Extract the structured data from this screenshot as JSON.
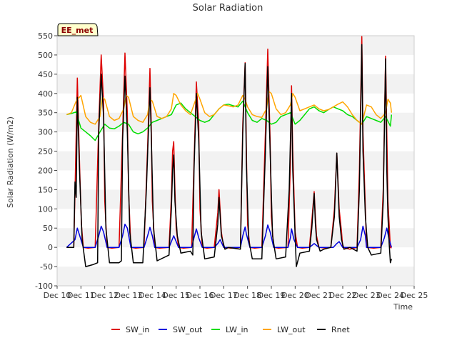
{
  "chart_data": {
    "type": "line",
    "title": "Solar Radiation",
    "xlabel": "Time",
    "ylabel": "Solar Radiation (W/m2)",
    "badge": "EE_met",
    "ylim": [
      -100,
      550
    ],
    "yticks": [
      -100,
      -50,
      0,
      50,
      100,
      150,
      200,
      250,
      300,
      350,
      400,
      450,
      500,
      550
    ],
    "xlim": [
      10,
      25
    ],
    "xticks": [
      10,
      11,
      12,
      13,
      14,
      15,
      16,
      17,
      18,
      19,
      20,
      21,
      22,
      23,
      24,
      25
    ],
    "xtick_labels": [
      "Dec 10",
      "Dec 11",
      "Dec 12",
      "Dec 13",
      "Dec 14",
      "Dec 15",
      "Dec 16",
      "Dec 17",
      "Dec 18",
      "Dec 19",
      "Dec 20",
      "Dec 21",
      "Dec 22",
      "Dec 23",
      "Dec 24",
      "Dec 25"
    ],
    "x_unit": "day of December (fractional)",
    "grid": "horizontal bands",
    "legend_position": "bottom",
    "series": [
      {
        "name": "SW_in",
        "color": "#dd0000",
        "x": [
          10.4,
          10.7,
          10.75,
          10.85,
          10.95,
          11.02,
          11.1,
          11.3,
          11.6,
          11.75,
          11.85,
          11.95,
          12.0,
          12.1,
          12.3,
          12.6,
          12.75,
          12.85,
          12.95,
          13.0,
          13.1,
          13.3,
          13.65,
          13.8,
          13.9,
          13.95,
          14.0,
          14.1,
          14.3,
          14.7,
          14.8,
          14.85,
          14.9,
          14.95,
          15.0,
          15.1,
          15.3,
          15.65,
          15.75,
          15.85,
          15.95,
          16.0,
          16.1,
          16.3,
          16.6,
          16.75,
          16.8,
          16.9,
          17.0,
          17.3,
          17.7,
          17.8,
          17.9,
          17.95,
          18.0,
          18.1,
          18.3,
          18.6,
          18.75,
          18.85,
          18.95,
          19.0,
          19.1,
          19.3,
          19.7,
          19.8,
          19.85,
          19.9,
          20.0,
          20.1,
          20.3,
          20.6,
          20.7,
          20.8,
          20.85,
          20.9,
          21.0,
          21.3,
          21.5,
          21.65,
          21.75,
          21.85,
          21.95,
          22.0,
          22.3,
          22.6,
          22.7,
          22.8,
          22.85,
          22.95,
          23.0,
          23.3,
          23.6,
          23.7,
          23.8,
          23.85,
          23.9,
          23.95,
          24.0,
          24.05
        ],
        "y": [
          0,
          0,
          140,
          440,
          200,
          60,
          0,
          -2,
          0,
          320,
          500,
          380,
          120,
          0,
          -2,
          0,
          300,
          505,
          350,
          150,
          0,
          -2,
          0,
          260,
          465,
          330,
          120,
          0,
          -2,
          0,
          130,
          250,
          275,
          150,
          50,
          0,
          -2,
          0,
          220,
          430,
          320,
          100,
          0,
          -2,
          0,
          90,
          150,
          40,
          0,
          -2,
          0,
          320,
          480,
          260,
          60,
          0,
          -2,
          0,
          300,
          515,
          280,
          80,
          0,
          -2,
          0,
          220,
          420,
          250,
          40,
          0,
          -2,
          0,
          70,
          145,
          80,
          30,
          0,
          -2,
          0,
          100,
          245,
          100,
          40,
          0,
          -5,
          0,
          200,
          548,
          300,
          100,
          0,
          -2,
          0,
          150,
          497,
          300,
          120,
          60,
          0,
          -2
        ]
      },
      {
        "name": "SW_out",
        "color": "#0000dd",
        "x": [
          10.4,
          10.75,
          10.85,
          10.95,
          11.1,
          11.6,
          11.75,
          11.85,
          11.95,
          12.1,
          12.6,
          12.75,
          12.85,
          12.95,
          13.1,
          13.65,
          13.8,
          13.9,
          14.0,
          14.1,
          14.7,
          14.8,
          14.9,
          15.0,
          15.1,
          15.65,
          15.75,
          15.85,
          15.95,
          16.1,
          16.6,
          16.75,
          16.85,
          17.0,
          17.7,
          17.8,
          17.9,
          17.95,
          18.1,
          18.6,
          18.75,
          18.85,
          18.95,
          19.1,
          19.7,
          19.8,
          19.85,
          19.95,
          20.1,
          20.6,
          20.7,
          20.8,
          20.9,
          21.0,
          21.6,
          21.75,
          21.85,
          22.0,
          22.6,
          22.75,
          22.85,
          22.95,
          23.0,
          23.6,
          23.75,
          23.85,
          23.95,
          24.05
        ],
        "y": [
          0,
          20,
          50,
          30,
          0,
          0,
          30,
          55,
          40,
          0,
          0,
          30,
          60,
          50,
          0,
          0,
          30,
          52,
          30,
          0,
          0,
          15,
          30,
          15,
          0,
          0,
          25,
          48,
          25,
          0,
          0,
          10,
          20,
          0,
          0,
          30,
          53,
          35,
          0,
          0,
          30,
          58,
          40,
          0,
          0,
          25,
          48,
          20,
          0,
          0,
          5,
          10,
          5,
          0,
          0,
          10,
          15,
          0,
          0,
          20,
          55,
          30,
          0,
          0,
          25,
          50,
          20,
          0
        ]
      },
      {
        "name": "LW_in",
        "color": "#00dd00",
        "x": [
          10.4,
          10.6,
          10.8,
          11.0,
          11.2,
          11.4,
          11.6,
          11.8,
          12.0,
          12.2,
          12.4,
          12.6,
          12.8,
          13.0,
          13.2,
          13.4,
          13.6,
          13.8,
          14.0,
          14.2,
          14.4,
          14.6,
          14.8,
          15.0,
          15.2,
          15.4,
          15.6,
          15.8,
          16.0,
          16.2,
          16.4,
          16.6,
          16.8,
          17.0,
          17.2,
          17.4,
          17.6,
          17.8,
          18.0,
          18.2,
          18.4,
          18.6,
          18.8,
          19.0,
          19.2,
          19.4,
          19.6,
          19.8,
          20.0,
          20.2,
          20.4,
          20.6,
          20.8,
          21.0,
          21.2,
          21.4,
          21.6,
          21.8,
          22.0,
          22.2,
          22.4,
          22.6,
          22.8,
          23.0,
          23.2,
          23.4,
          23.6,
          23.8,
          24.0,
          24.05
        ],
        "y": [
          345,
          348,
          352,
          310,
          300,
          290,
          278,
          300,
          320,
          310,
          308,
          315,
          325,
          320,
          300,
          295,
          300,
          310,
          325,
          330,
          335,
          340,
          345,
          370,
          375,
          360,
          350,
          340,
          330,
          325,
          330,
          345,
          360,
          370,
          372,
          368,
          365,
          380,
          350,
          330,
          325,
          335,
          330,
          320,
          325,
          340,
          345,
          350,
          320,
          330,
          345,
          360,
          365,
          355,
          350,
          358,
          365,
          360,
          355,
          345,
          340,
          330,
          320,
          340,
          335,
          330,
          325,
          340,
          315,
          345
        ]
      },
      {
        "name": "LW_out",
        "color": "#ffa500",
        "x": [
          10.4,
          10.6,
          10.8,
          11.0,
          11.2,
          11.4,
          11.6,
          11.8,
          11.9,
          12.0,
          12.2,
          12.4,
          12.6,
          12.8,
          12.9,
          13.0,
          13.2,
          13.4,
          13.6,
          13.8,
          13.9,
          14.0,
          14.2,
          14.4,
          14.6,
          14.8,
          14.9,
          15.0,
          15.2,
          15.4,
          15.6,
          15.8,
          15.9,
          16.0,
          16.2,
          16.4,
          16.6,
          16.8,
          17.0,
          17.2,
          17.4,
          17.6,
          17.8,
          17.9,
          18.0,
          18.2,
          18.4,
          18.6,
          18.8,
          18.9,
          19.0,
          19.2,
          19.4,
          19.6,
          19.8,
          19.9,
          20.0,
          20.2,
          20.4,
          20.6,
          20.8,
          21.0,
          21.2,
          21.4,
          21.6,
          21.8,
          22.0,
          22.2,
          22.4,
          22.6,
          22.8,
          23.0,
          23.2,
          23.4,
          23.6,
          23.8,
          23.9,
          24.0,
          24.05
        ],
        "y": [
          345,
          350,
          380,
          395,
          340,
          325,
          320,
          340,
          390,
          385,
          340,
          330,
          335,
          360,
          395,
          390,
          340,
          330,
          325,
          345,
          385,
          380,
          340,
          335,
          340,
          360,
          400,
          395,
          370,
          355,
          345,
          380,
          400,
          385,
          350,
          340,
          345,
          360,
          370,
          368,
          365,
          370,
          395,
          385,
          365,
          345,
          340,
          338,
          360,
          405,
          400,
          360,
          345,
          350,
          370,
          400,
          390,
          355,
          360,
          365,
          370,
          360,
          355,
          358,
          365,
          372,
          378,
          365,
          345,
          330,
          320,
          370,
          365,
          345,
          335,
          350,
          385,
          375,
          350
        ]
      },
      {
        "name": "Rnet",
        "color": "#000000",
        "x": [
          10.4,
          10.7,
          10.75,
          10.8,
          10.85,
          10.95,
          11.05,
          11.2,
          11.5,
          11.7,
          11.75,
          11.85,
          11.95,
          12.05,
          12.2,
          12.6,
          12.7,
          12.75,
          12.85,
          12.95,
          13.05,
          13.2,
          13.6,
          13.75,
          13.8,
          13.9,
          13.95,
          14.05,
          14.2,
          14.7,
          14.8,
          14.85,
          14.9,
          14.95,
          15.05,
          15.2,
          15.6,
          15.7,
          15.75,
          15.85,
          15.95,
          16.05,
          16.2,
          16.6,
          16.75,
          16.8,
          16.9,
          17.05,
          17.2,
          17.7,
          17.8,
          17.9,
          17.95,
          18.05,
          18.2,
          18.6,
          18.75,
          18.85,
          18.95,
          19.05,
          19.2,
          19.6,
          19.75,
          19.85,
          19.9,
          20.0,
          20.05,
          20.2,
          20.6,
          20.7,
          20.8,
          20.85,
          20.9,
          21.05,
          21.2,
          21.5,
          21.65,
          21.75,
          21.85,
          21.95,
          22.05,
          22.3,
          22.6,
          22.7,
          22.8,
          22.85,
          22.95,
          23.05,
          23.2,
          23.6,
          23.7,
          23.8,
          23.85,
          23.9,
          23.95,
          24.0,
          24.05
        ],
        "y": [
          0,
          0,
          170,
          130,
          390,
          180,
          20,
          -50,
          -45,
          -40,
          300,
          450,
          340,
          50,
          -40,
          -40,
          -35,
          280,
          445,
          300,
          40,
          -40,
          -40,
          150,
          240,
          415,
          300,
          50,
          -35,
          -20,
          100,
          200,
          240,
          120,
          30,
          -15,
          -10,
          -20,
          200,
          400,
          280,
          40,
          -30,
          -25,
          60,
          130,
          30,
          -5,
          0,
          -5,
          300,
          478,
          220,
          20,
          -30,
          -30,
          250,
          470,
          250,
          30,
          -30,
          -25,
          150,
          400,
          200,
          30,
          -50,
          -15,
          -10,
          50,
          140,
          60,
          20,
          -10,
          -5,
          0,
          80,
          245,
          80,
          20,
          -5,
          0,
          -10,
          150,
          527,
          250,
          80,
          0,
          -20,
          -15,
          120,
          490,
          200,
          80,
          10,
          -40,
          -30
        ]
      }
    ]
  }
}
